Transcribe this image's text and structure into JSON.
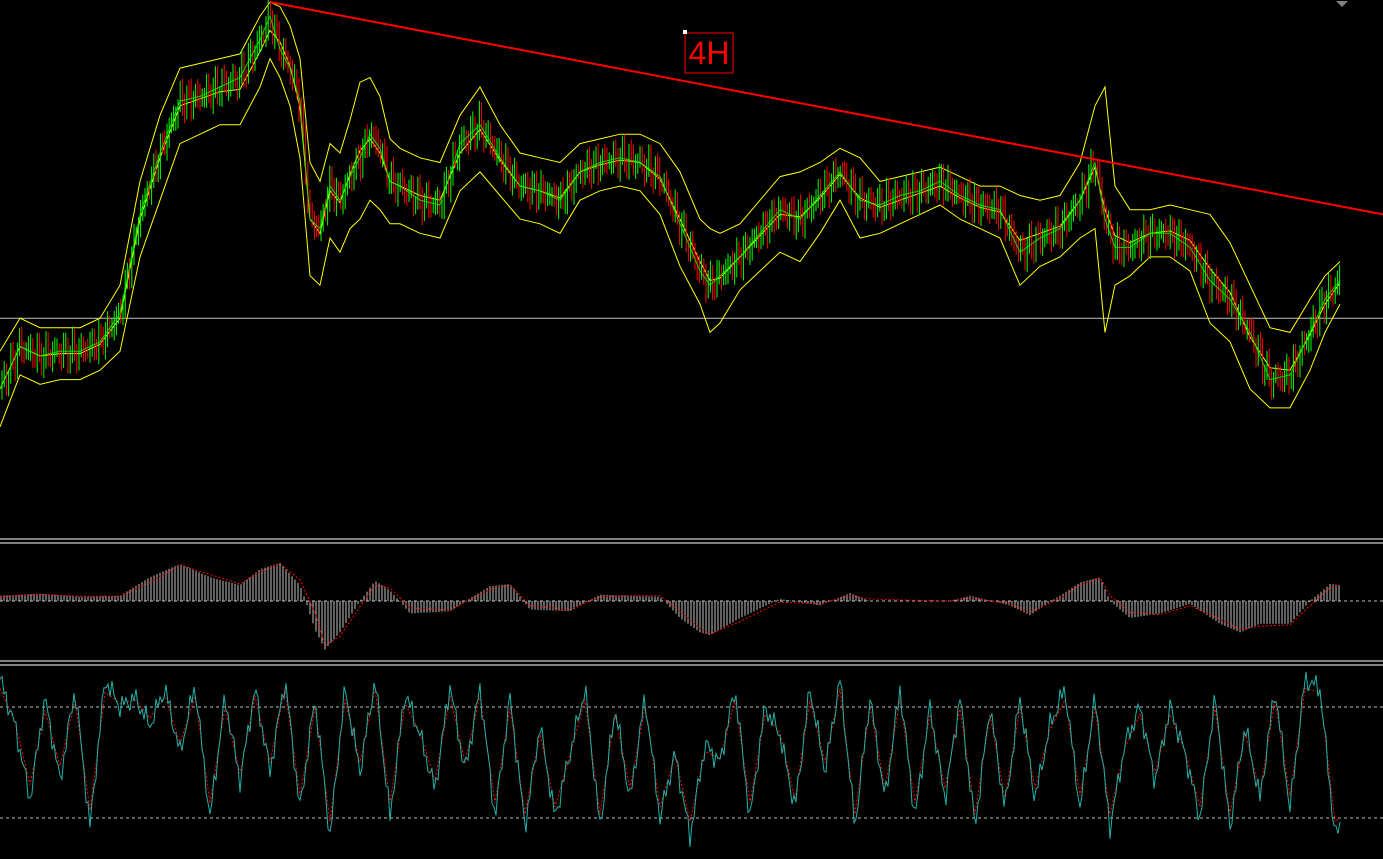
{
  "timeframe_label": "4H",
  "colors": {
    "background": "#000000",
    "separator": "#ffffff",
    "level_line": "#c0c0c0",
    "bollinger_bands": "#ffff00",
    "price_line": "#00ff00",
    "candle_up": "#00ff00",
    "candle_down": "#ff0000",
    "trendline": "#ff0000",
    "label": "#ff0000",
    "macd_histogram": "#c0c0c0",
    "macd_signal": "#ff0000",
    "stoch_main": "#20b2aa",
    "stoch_signal": "#ff0000",
    "stoch_levels": "#c0c0c0"
  },
  "chart_data": [
    {
      "type": "line",
      "name": "price-panel",
      "indicators": [
        "bollinger-bands",
        "trendline",
        "horizontal-level"
      ],
      "grid": false,
      "ylim": [
        0,
        100
      ],
      "x": [
        0,
        20,
        40,
        60,
        80,
        100,
        120,
        140,
        160,
        180,
        200,
        220,
        240,
        260,
        270,
        280,
        290,
        300,
        310,
        320,
        330,
        340,
        350,
        360,
        370,
        380,
        390,
        400,
        420,
        440,
        460,
        480,
        500,
        520,
        540,
        560,
        580,
        600,
        620,
        640,
        660,
        680,
        700,
        710,
        720,
        740,
        760,
        780,
        800,
        820,
        840,
        860,
        880,
        900,
        920,
        940,
        960,
        980,
        1000,
        1020,
        1040,
        1060,
        1080,
        1095,
        1105,
        1115,
        1130,
        1150,
        1170,
        1190,
        1210,
        1230,
        1250,
        1270,
        1290,
        1310,
        1325,
        1340
      ],
      "close": [
        18,
        27,
        25,
        26,
        26,
        28,
        34,
        55,
        68,
        79,
        80,
        82,
        84,
        92,
        97,
        90,
        86,
        79,
        54,
        52,
        61,
        58,
        63,
        67,
        72,
        69,
        62,
        61,
        58,
        57,
        70,
        74,
        67,
        61,
        60,
        58,
        64,
        66,
        67,
        66,
        63,
        53,
        43,
        40,
        42,
        46,
        51,
        56,
        54,
        59,
        64,
        58,
        57,
        59,
        60,
        62,
        59,
        57,
        56,
        47,
        50,
        52,
        58,
        66,
        54,
        48,
        48,
        51,
        51,
        48,
        41,
        37,
        30,
        20,
        21,
        30,
        37,
        41
      ],
      "bb_upper": [
        26,
        33,
        31,
        31,
        31,
        33,
        40,
        62,
        76,
        86,
        87,
        88,
        89,
        97,
        100,
        99,
        95,
        88,
        66,
        62,
        70,
        68,
        75,
        83,
        84,
        80,
        71,
        69,
        67,
        66,
        76,
        82,
        74,
        68,
        67,
        66,
        70,
        71,
        72,
        72,
        70,
        64,
        54,
        52,
        51,
        53,
        58,
        63,
        64,
        66,
        69,
        67,
        62,
        63,
        64,
        65,
        63,
        61,
        61,
        59,
        58,
        59,
        66,
        78,
        82,
        61,
        56,
        56,
        57,
        56,
        55,
        49,
        40,
        31,
        30,
        37,
        42,
        45
      ],
      "bb_lower": [
        10,
        21,
        19,
        20,
        20,
        22,
        26,
        46,
        58,
        70,
        72,
        74,
        74,
        82,
        88,
        84,
        78,
        67,
        42,
        40,
        50,
        47,
        52,
        54,
        58,
        56,
        53,
        53,
        51,
        50,
        60,
        64,
        59,
        54,
        53,
        51,
        58,
        60,
        61,
        60,
        55,
        44,
        36,
        30,
        32,
        39,
        43,
        47,
        45,
        51,
        58,
        50,
        51,
        53,
        55,
        57,
        54,
        52,
        50,
        40,
        44,
        46,
        50,
        52,
        30,
        40,
        42,
        46,
        46,
        43,
        32,
        28,
        18,
        14,
        14,
        22,
        30,
        36
      ],
      "trendline": {
        "from": [
          270,
          100
        ],
        "to": [
          1383,
          55
        ]
      },
      "horizontal_level": 33
    },
    {
      "type": "bar",
      "name": "macd-panel",
      "grid": false,
      "ylim": [
        -1,
        1
      ],
      "x": [
        0,
        40,
        80,
        120,
        150,
        180,
        210,
        240,
        260,
        280,
        300,
        315,
        325,
        340,
        360,
        375,
        390,
        410,
        450,
        490,
        510,
        530,
        570,
        600,
        630,
        660,
        680,
        700,
        710,
        740,
        780,
        820,
        850,
        870,
        900,
        950,
        970,
        1010,
        1030,
        1060,
        1080,
        1100,
        1110,
        1130,
        1160,
        1190,
        1220,
        1240,
        1260,
        1290,
        1310,
        1330,
        1340
      ],
      "histogram": [
        0.1,
        0.14,
        0.08,
        0.1,
        0.45,
        0.7,
        0.45,
        0.3,
        0.6,
        0.72,
        0.3,
        -0.5,
        -0.85,
        -0.55,
        0.0,
        0.38,
        0.2,
        -0.22,
        -0.18,
        0.28,
        0.32,
        -0.15,
        -0.18,
        0.12,
        0.1,
        0.08,
        -0.3,
        -0.55,
        -0.6,
        -0.3,
        0.04,
        -0.08,
        0.15,
        0.0,
        0.0,
        0.0,
        0.1,
        -0.08,
        -0.25,
        0.1,
        0.35,
        0.45,
        0.0,
        -0.3,
        -0.22,
        -0.05,
        -0.4,
        -0.55,
        -0.4,
        -0.4,
        0.0,
        0.32,
        0.3
      ],
      "signal": [
        0.08,
        0.12,
        0.09,
        0.09,
        0.35,
        0.68,
        0.5,
        0.32,
        0.55,
        0.7,
        0.4,
        -0.2,
        -0.78,
        -0.62,
        -0.1,
        0.3,
        0.25,
        -0.12,
        -0.16,
        0.22,
        0.3,
        -0.08,
        -0.15,
        0.08,
        0.1,
        0.1,
        -0.18,
        -0.48,
        -0.58,
        -0.36,
        -0.02,
        -0.05,
        0.1,
        0.04,
        0.02,
        0.0,
        0.06,
        -0.05,
        -0.2,
        0.05,
        0.3,
        0.44,
        0.1,
        -0.2,
        -0.24,
        -0.08,
        -0.32,
        -0.5,
        -0.44,
        -0.42,
        -0.08,
        0.25,
        0.3
      ]
    },
    {
      "type": "line",
      "name": "stochastic-panel",
      "grid": false,
      "ylim": [
        0,
        100
      ],
      "levels": [
        80,
        20
      ],
      "x": [
        0,
        15,
        30,
        45,
        60,
        75,
        90,
        105,
        120,
        135,
        150,
        165,
        180,
        195,
        210,
        225,
        240,
        255,
        270,
        285,
        300,
        315,
        330,
        345,
        360,
        375,
        390,
        405,
        420,
        435,
        450,
        465,
        480,
        495,
        510,
        525,
        540,
        555,
        570,
        585,
        600,
        615,
        630,
        645,
        660,
        675,
        690,
        705,
        720,
        735,
        750,
        765,
        780,
        795,
        810,
        825,
        840,
        855,
        870,
        885,
        900,
        915,
        930,
        945,
        960,
        975,
        990,
        1005,
        1020,
        1035,
        1050,
        1065,
        1080,
        1095,
        1110,
        1125,
        1140,
        1155,
        1170,
        1185,
        1200,
        1215,
        1230,
        1245,
        1260,
        1275,
        1290,
        1305,
        1320,
        1335,
        1340
      ],
      "main": [
        95,
        70,
        30,
        85,
        40,
        90,
        15,
        95,
        80,
        85,
        70,
        90,
        55,
        92,
        20,
        85,
        40,
        90,
        45,
        95,
        25,
        85,
        10,
        90,
        45,
        95,
        20,
        88,
        65,
        35,
        92,
        45,
        90,
        20,
        85,
        15,
        70,
        20,
        55,
        90,
        15,
        80,
        30,
        85,
        20,
        55,
        10,
        60,
        50,
        90,
        20,
        80,
        65,
        25,
        90,
        45,
        95,
        15,
        85,
        30,
        90,
        20,
        80,
        30,
        85,
        15,
        80,
        25,
        85,
        30,
        70,
        90,
        25,
        85,
        15,
        60,
        80,
        40,
        80,
        55,
        20,
        85,
        15,
        70,
        30,
        90,
        25,
        95,
        90,
        10,
        15
      ],
      "signal": [
        90,
        72,
        38,
        78,
        48,
        84,
        24,
        88,
        82,
        84,
        74,
        86,
        60,
        86,
        28,
        80,
        44,
        86,
        50,
        90,
        32,
        80,
        18,
        84,
        50,
        90,
        28,
        82,
        66,
        40,
        86,
        50,
        86,
        28,
        80,
        22,
        66,
        26,
        54,
        84,
        22,
        76,
        36,
        80,
        26,
        54,
        18,
        56,
        52,
        84,
        28,
        76,
        66,
        30,
        84,
        50,
        90,
        22,
        80,
        36,
        84,
        28,
        76,
        36,
        80,
        22,
        76,
        30,
        80,
        36,
        68,
        84,
        32,
        80,
        22,
        58,
        76,
        44,
        76,
        56,
        26,
        80,
        22,
        66,
        34,
        84,
        32,
        90,
        88,
        18,
        20
      ]
    }
  ]
}
